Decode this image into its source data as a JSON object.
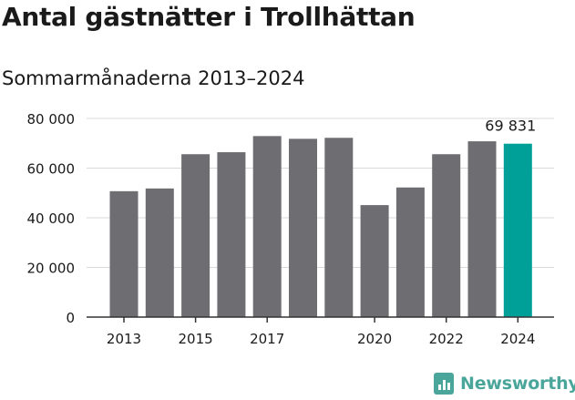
{
  "chart_data": {
    "type": "bar",
    "title": "Antal gästnätter i Trollhättan",
    "subtitle": "Sommarmånaderna 2013–2024",
    "categories": [
      "2013",
      "2014",
      "2015",
      "2016",
      "2017",
      "2018",
      "2019",
      "2020",
      "2021",
      "2022",
      "2023",
      "2024"
    ],
    "values": [
      50700,
      51800,
      65600,
      66400,
      72900,
      71800,
      72200,
      45100,
      52200,
      65600,
      70800,
      69831
    ],
    "x_tick_labels": [
      "2013",
      "2015",
      "2017",
      "2020",
      "2022",
      "2024"
    ],
    "y_ticks": [
      0,
      20000,
      40000,
      60000,
      80000
    ],
    "y_tick_labels": [
      "0",
      "20 000",
      "40 000",
      "60 000",
      "80 000"
    ],
    "ylim": [
      0,
      80000
    ],
    "grid": true,
    "data_labels": [
      {
        "category": "2024",
        "text": "69 831"
      }
    ],
    "colors": {
      "default": "#6e6d72",
      "highlight": "#00a098"
    },
    "highlight_category": "2024"
  },
  "brand": {
    "name": "Newsworthy"
  }
}
